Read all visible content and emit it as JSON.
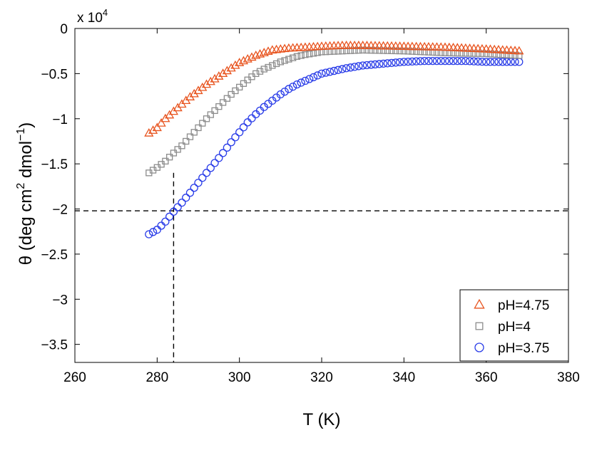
{
  "chart_data": {
    "type": "scatter",
    "title": "",
    "xlabel": "T (K)",
    "ylabel_main": "θ (deg cm",
    "ylabel_sup1": "2",
    "ylabel_mid": " dmol",
    "ylabel_sup2": "−1",
    "ylabel_end": ")",
    "exponent_base": "x 10",
    "exponent_power": "4",
    "xlim": [
      260,
      380
    ],
    "ylim": [
      -3.7,
      0
    ],
    "xticks": [
      260,
      280,
      300,
      320,
      340,
      360,
      380
    ],
    "xtick_labels": [
      "260",
      "280",
      "300",
      "320",
      "340",
      "360",
      "380"
    ],
    "yticks": [
      0,
      -0.5,
      -1,
      -1.5,
      -2,
      -2.5,
      -3,
      -3.5
    ],
    "ytick_labels": [
      "0",
      "−0.5",
      "−1",
      "−1.5",
      "−2",
      "−2.5",
      "−3",
      "−3.5"
    ],
    "grid": false,
    "legend_position": "bottom-right",
    "reference_lines": {
      "horizontal_y": -2.02,
      "vertical_x": 284,
      "vertical_top_y": -1.6
    },
    "series": [
      {
        "name": "pH=4.75",
        "marker": "triangle",
        "color": "#e8541f",
        "x": [
          278,
          280,
          282,
          284,
          286,
          288,
          290,
          292,
          294,
          296,
          298,
          300,
          302,
          304,
          306,
          308,
          310,
          312,
          316,
          320,
          325,
          330,
          340,
          350,
          360,
          368
        ],
        "y": [
          -1.16,
          -1.1,
          -1.0,
          -0.92,
          -0.84,
          -0.76,
          -0.69,
          -0.62,
          -0.56,
          -0.5,
          -0.44,
          -0.38,
          -0.34,
          -0.3,
          -0.27,
          -0.24,
          -0.23,
          -0.22,
          -0.21,
          -0.2,
          -0.19,
          -0.19,
          -0.2,
          -0.21,
          -0.23,
          -0.25
        ]
      },
      {
        "name": "pH=4",
        "marker": "square",
        "color": "#8c8c8c",
        "x": [
          278,
          280,
          282,
          284,
          286,
          288,
          290,
          292,
          294,
          296,
          298,
          300,
          302,
          304,
          306,
          308,
          310,
          312,
          314,
          316,
          320,
          325,
          330,
          340,
          350,
          360,
          368
        ],
        "y": [
          -1.6,
          -1.54,
          -1.47,
          -1.38,
          -1.3,
          -1.2,
          -1.1,
          -1.0,
          -0.91,
          -0.82,
          -0.73,
          -0.65,
          -0.57,
          -0.5,
          -0.45,
          -0.41,
          -0.37,
          -0.34,
          -0.31,
          -0.29,
          -0.26,
          -0.25,
          -0.24,
          -0.25,
          -0.27,
          -0.28,
          -0.3
        ]
      },
      {
        "name": "pH=3.75",
        "marker": "circle",
        "color": "#2a3de8",
        "x": [
          278,
          280,
          282,
          284,
          286,
          288,
          290,
          292,
          294,
          296,
          298,
          300,
          302,
          304,
          306,
          308,
          310,
          312,
          314,
          316,
          318,
          320,
          322,
          324,
          326,
          330,
          335,
          340,
          345,
          350,
          355,
          360,
          365,
          368
        ],
        "y": [
          -2.28,
          -2.23,
          -2.14,
          -2.03,
          -1.93,
          -1.82,
          -1.71,
          -1.6,
          -1.49,
          -1.38,
          -1.26,
          -1.15,
          -1.04,
          -0.95,
          -0.87,
          -0.8,
          -0.73,
          -0.67,
          -0.62,
          -0.58,
          -0.54,
          -0.5,
          -0.48,
          -0.46,
          -0.44,
          -0.41,
          -0.39,
          -0.37,
          -0.36,
          -0.36,
          -0.36,
          -0.37,
          -0.37,
          -0.37
        ]
      }
    ]
  }
}
